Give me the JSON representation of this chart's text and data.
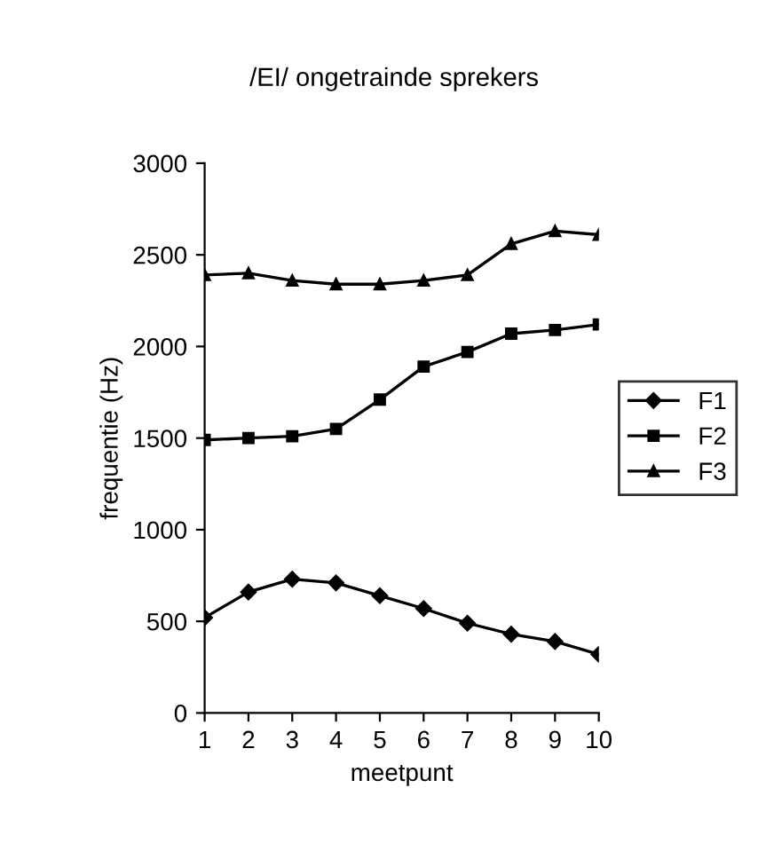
{
  "chart_data": {
    "type": "line",
    "title": "/EI/ ongetrainde sprekers",
    "xlabel": "meetpunt",
    "ylabel": "frequentie (Hz)",
    "x": [
      1,
      2,
      3,
      4,
      5,
      6,
      7,
      8,
      9,
      10
    ],
    "series": [
      {
        "name": "F1",
        "color": "#000000",
        "marker": "diamond",
        "values": [
          520,
          660,
          730,
          710,
          640,
          570,
          490,
          430,
          390,
          320
        ]
      },
      {
        "name": "F2",
        "color": "#000000",
        "marker": "square",
        "values": [
          1490,
          1500,
          1510,
          1550,
          1710,
          1890,
          1970,
          2070,
          2090,
          2120
        ]
      },
      {
        "name": "F3",
        "color": "#000000",
        "marker": "triangle",
        "values": [
          2390,
          2400,
          2360,
          2340,
          2340,
          2360,
          2390,
          2560,
          2630,
          2610
        ]
      }
    ],
    "xlim": [
      1,
      10
    ],
    "xticks": [
      1,
      2,
      3,
      4,
      5,
      6,
      7,
      8,
      9,
      10
    ],
    "ylim": [
      0,
      3000
    ],
    "yticks": [
      0,
      500,
      1000,
      1500,
      2000,
      2500,
      3000
    ],
    "grid": false,
    "legend": "right",
    "line_style": "solid"
  }
}
